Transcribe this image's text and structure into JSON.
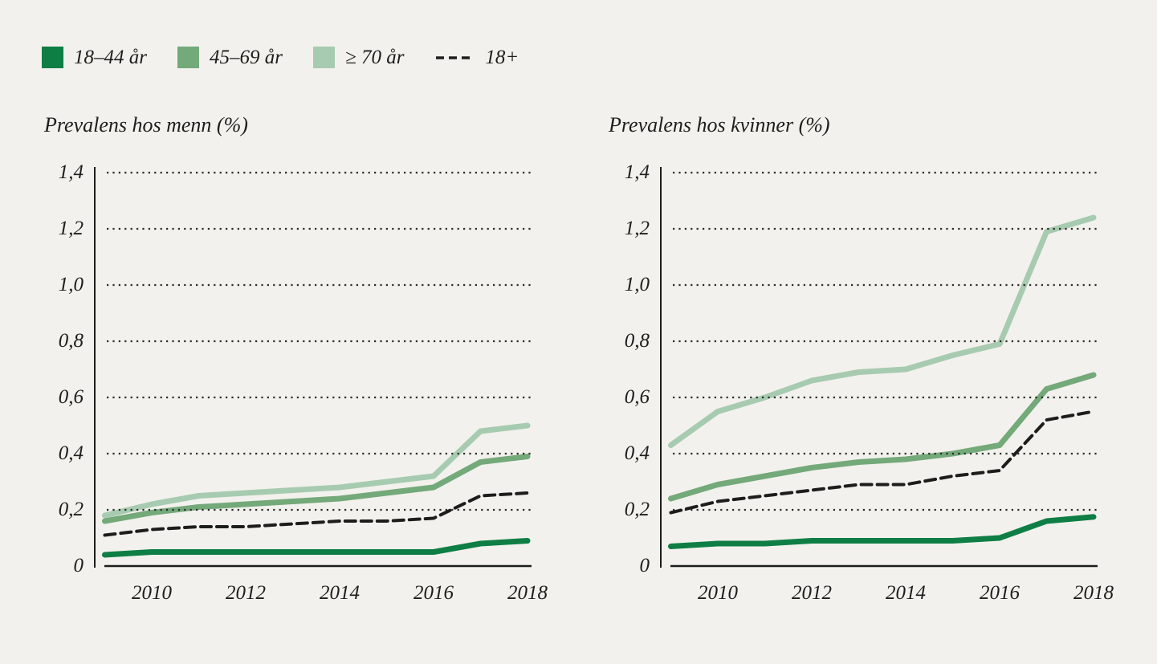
{
  "page": {
    "background_color": "#f2f1ed",
    "text_color": "#1d1d1b"
  },
  "legend": {
    "items": [
      {
        "label": "18–44 år",
        "swatch": "square",
        "color": "#0e7e45"
      },
      {
        "label": "45–69 år",
        "swatch": "square",
        "color": "#74a97a"
      },
      {
        "label": "≥ 70 år",
        "swatch": "square",
        "color": "#a7cbb0"
      },
      {
        "label": "18+",
        "swatch": "dashed-line",
        "color": "#1d1d1b"
      }
    ]
  },
  "chart_data": [
    {
      "type": "line",
      "title": "Prevalens hos menn (%)",
      "x": [
        2009,
        2010,
        2011,
        2012,
        2013,
        2014,
        2015,
        2016,
        2017,
        2018
      ],
      "x_ticks": [
        2010,
        2012,
        2014,
        2016,
        2018
      ],
      "x_tick_labels": [
        "2010",
        "2012",
        "2014",
        "2016",
        "2018"
      ],
      "y_ticks": [
        0,
        0.2,
        0.4,
        0.6,
        0.8,
        1.0,
        1.2,
        1.4
      ],
      "y_tick_labels": [
        "0",
        "0,2",
        "0,4",
        "0,6",
        "0,8",
        "1,0",
        "1,2",
        "1,4"
      ],
      "ylim": [
        0,
        1.4
      ],
      "grid": "horizontal-dotted",
      "legend_position": "top-left-shared",
      "series": [
        {
          "name": "18–44 år",
          "style": "solid",
          "color": "#0e7e45",
          "values": [
            0.04,
            0.05,
            0.05,
            0.05,
            0.05,
            0.05,
            0.05,
            0.05,
            0.08,
            0.09
          ]
        },
        {
          "name": "45–69 år",
          "style": "solid",
          "color": "#74a97a",
          "values": [
            0.16,
            0.19,
            0.21,
            0.22,
            0.23,
            0.24,
            0.26,
            0.28,
            0.37,
            0.39
          ]
        },
        {
          "name": "≥ 70 år",
          "style": "solid",
          "color": "#a7cbb0",
          "values": [
            0.18,
            0.22,
            0.25,
            0.26,
            0.27,
            0.28,
            0.3,
            0.32,
            0.48,
            0.5
          ]
        },
        {
          "name": "18+",
          "style": "dashed",
          "color": "#1d1d1b",
          "values": [
            0.11,
            0.13,
            0.14,
            0.14,
            0.15,
            0.16,
            0.16,
            0.17,
            0.25,
            0.26
          ]
        }
      ]
    },
    {
      "type": "line",
      "title": "Prevalens hos kvinner (%)",
      "x": [
        2009,
        2010,
        2011,
        2012,
        2013,
        2014,
        2015,
        2016,
        2017,
        2018
      ],
      "x_ticks": [
        2010,
        2012,
        2014,
        2016,
        2018
      ],
      "x_tick_labels": [
        "2010",
        "2012",
        "2014",
        "2016",
        "2018"
      ],
      "y_ticks": [
        0,
        0.2,
        0.4,
        0.6,
        0.8,
        1.0,
        1.2,
        1.4
      ],
      "y_tick_labels": [
        "0",
        "0,2",
        "0,4",
        "0,6",
        "0,8",
        "1,0",
        "1,2",
        "1,4"
      ],
      "ylim": [
        0,
        1.4
      ],
      "grid": "horizontal-dotted",
      "legend_position": "top-left-shared",
      "series": [
        {
          "name": "18–44 år",
          "style": "solid",
          "color": "#0e7e45",
          "values": [
            0.07,
            0.08,
            0.08,
            0.09,
            0.09,
            0.09,
            0.09,
            0.1,
            0.16,
            0.175
          ]
        },
        {
          "name": "45–69 år",
          "style": "solid",
          "color": "#74a97a",
          "values": [
            0.24,
            0.29,
            0.32,
            0.35,
            0.37,
            0.38,
            0.4,
            0.43,
            0.63,
            0.68
          ]
        },
        {
          "name": "≥ 70 år",
          "style": "solid",
          "color": "#a7cbb0",
          "values": [
            0.43,
            0.55,
            0.6,
            0.66,
            0.69,
            0.7,
            0.75,
            0.79,
            1.19,
            1.24
          ]
        },
        {
          "name": "18+",
          "style": "dashed",
          "color": "#1d1d1b",
          "values": [
            0.19,
            0.23,
            0.25,
            0.27,
            0.29,
            0.29,
            0.32,
            0.34,
            0.52,
            0.55
          ]
        }
      ]
    }
  ]
}
